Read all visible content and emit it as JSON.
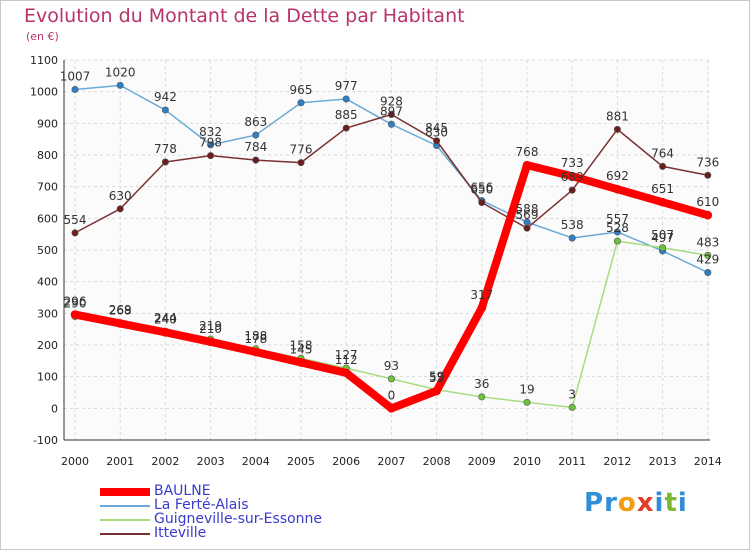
{
  "title": "Evolution du Montant de la Dette par Habitant",
  "unit": "(en €)",
  "brand": {
    "letters": [
      {
        "ch": "P",
        "color": "#2f8fd6"
      },
      {
        "ch": "r",
        "color": "#2f8fd6"
      },
      {
        "ch": "o",
        "color": "#f39c12"
      },
      {
        "ch": "x",
        "color": "#e23d28"
      },
      {
        "ch": "i",
        "color": "#2f8fd6"
      },
      {
        "ch": "t",
        "color": "#7cb82f"
      },
      {
        "ch": "i",
        "color": "#2f8fd6"
      }
    ]
  },
  "chart_data": {
    "type": "line",
    "x": [
      "2000",
      "2001",
      "2002",
      "2003",
      "2004",
      "2005",
      "2006",
      "2007",
      "2008",
      "2009",
      "2010",
      "2011",
      "2012",
      "2013",
      "2014"
    ],
    "ylim": [
      -100,
      1100
    ],
    "yticks": [
      -100,
      0,
      100,
      200,
      300,
      400,
      500,
      600,
      700,
      800,
      900,
      1000,
      1100
    ],
    "grid": true,
    "legend_position": "bottom-left",
    "series": [
      {
        "name": "BAULNE",
        "color": "#ff0000",
        "marker": "#ff0000",
        "emphasis": true,
        "values": [
          296,
          268,
          240,
          210,
          178,
          145,
          112,
          0,
          55,
          317,
          768,
          733,
          692,
          651,
          610
        ]
      },
      {
        "name": "La Ferté-Alais",
        "color": "#6aaad8",
        "marker": "#2f7fc6",
        "emphasis": false,
        "values": [
          1007,
          1020,
          942,
          832,
          863,
          965,
          977,
          897,
          830,
          656,
          588,
          538,
          557,
          497,
          429
        ]
      },
      {
        "name": "Guigneville-sur-Essonne",
        "color": "#a6dc80",
        "marker": "#6cc33a",
        "emphasis": false,
        "values": [
          290,
          269,
          244,
          219,
          188,
          158,
          127,
          93,
          59,
          36,
          19,
          3,
          528,
          507,
          483
        ]
      },
      {
        "name": "Itteville",
        "color": "#7a3030",
        "marker": "#6b1e1e",
        "emphasis": false,
        "values": [
          554,
          630,
          778,
          798,
          784,
          776,
          885,
          928,
          845,
          650,
          569,
          689,
          881,
          764,
          736
        ]
      }
    ]
  }
}
